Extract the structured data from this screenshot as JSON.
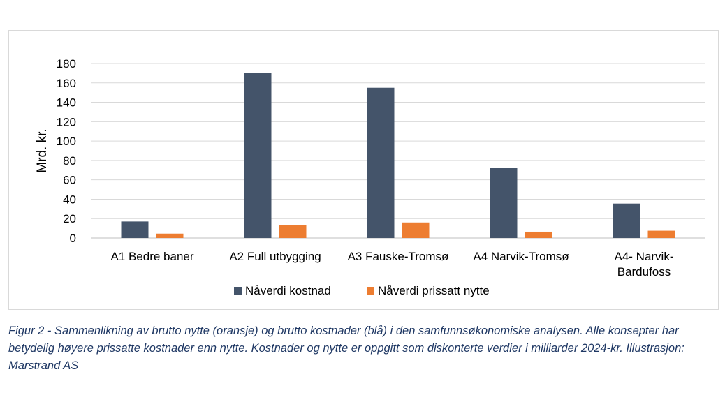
{
  "chart_data": {
    "type": "bar",
    "ylabel": "Mrd. kr.",
    "ylim": [
      0,
      180
    ],
    "yticks": [
      "0",
      "20",
      "40",
      "60",
      "80",
      "100",
      "120",
      "140",
      "160",
      "180"
    ],
    "grid": true,
    "legend_position": "bottom",
    "categories": [
      [
        "A1 Bedre baner"
      ],
      [
        "A2 Full utbygging"
      ],
      [
        "A3 Fauske-Tromsø"
      ],
      [
        "A4 Narvik-Tromsø"
      ],
      [
        "A4- Narvik-",
        "Bardufoss"
      ]
    ],
    "series": [
      {
        "name": "Nåverdi kostnad",
        "color": "#44546a",
        "values": [
          17,
          170,
          155,
          72.5,
          35.5
        ]
      },
      {
        "name": "Nåverdi prissatt nytte",
        "color": "#ed7d31",
        "values": [
          4.5,
          13,
          16,
          6.5,
          7.5
        ]
      }
    ]
  },
  "caption": "Figur 2 - Sammenlikning av brutto nytte (oransje) og brutto kostnader (blå) i den samfunnsøkonomiske analysen. Alle konsepter har betydelig høyere prissatte kostnader enn nytte. Kostnader og nytte er oppgitt som diskonterte verdier i milliarder 2024-kr. Illustrasjon: Marstrand AS"
}
